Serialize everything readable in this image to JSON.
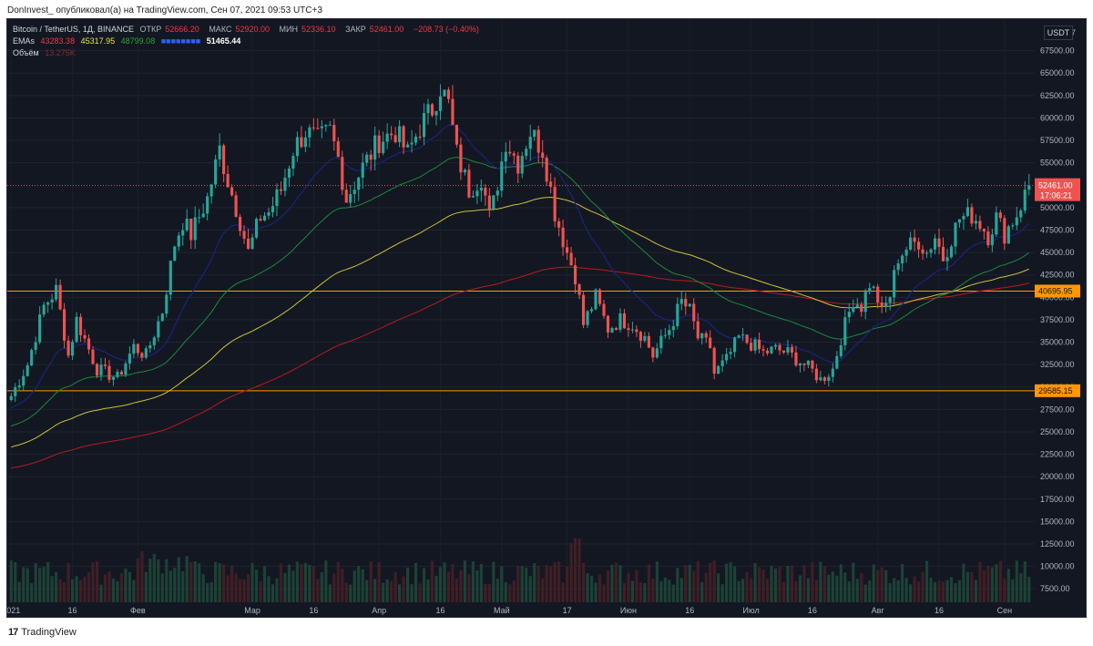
{
  "header": {
    "caption": "DonInvest_ опубликовал(а) на TradingView.com, Сен 07, 2021 09:53 UTC+3"
  },
  "legend": {
    "symbol": "Bitcoin / TetherUS, 1Д, BINANCE",
    "open_label": "ОТКР",
    "open": "52666.20",
    "high_label": "МАКС",
    "high": "52920.00",
    "low_label": "МИН",
    "low": "52336.10",
    "close_label": "ЗАКР",
    "close": "52461.00",
    "change": "−208.73 (−0.40%)",
    "ema_label": "EMAs",
    "ema_values": [
      "43283.38",
      "45317.95",
      "48799.08",
      "51465.44"
    ],
    "volume_label": "Объём",
    "volume_value": "13.275K"
  },
  "currency": "USDT",
  "colors": {
    "background": "#131722",
    "up": "#26a69a",
    "down": "#ef5350",
    "ema200": "#b71c1c",
    "ema100": "#c9c23a",
    "ema50": "#1b8a3a",
    "ema20": "#1a237e",
    "level": "#ff9800",
    "last_price": "#ef5350"
  },
  "chart_data": {
    "type": "candlestick",
    "title": "Bitcoin / TetherUS, 1Д, BINANCE",
    "y_ticks": [
      7500,
      10000,
      12500,
      15000,
      17500,
      20000,
      22500,
      25000,
      27500,
      30000,
      32500,
      35000,
      37500,
      40000,
      42500,
      45000,
      47500,
      50000,
      55000,
      57500,
      60000,
      62500,
      65000,
      67500
    ],
    "y_top_partial_label": "7",
    "ylim": [
      6000,
      70000
    ],
    "x_ticks": [
      "2021",
      "16",
      "Фев",
      "Мар",
      "16",
      "Апр",
      "16",
      "Май",
      "17",
      "Июн",
      "16",
      "Июл",
      "16",
      "Авг",
      "16",
      "Сен"
    ],
    "x_tick_days": [
      0,
      15,
      31,
      59,
      74,
      90,
      105,
      120,
      136,
      151,
      166,
      181,
      196,
      212,
      227,
      243
    ],
    "total_days": 250,
    "horizontal_levels": [
      {
        "value": 40695.95,
        "label": "40695.95"
      },
      {
        "value": 29585.15,
        "label": "29585.15"
      }
    ],
    "last_price": {
      "value": 52461.0,
      "label": "52461.00",
      "countdown": "17:06:21"
    },
    "anchors": [
      [
        0,
        29000
      ],
      [
        4,
        32500
      ],
      [
        8,
        39000
      ],
      [
        11,
        40800
      ],
      [
        14,
        33500
      ],
      [
        16,
        37500
      ],
      [
        21,
        32000
      ],
      [
        26,
        31000
      ],
      [
        30,
        34500
      ],
      [
        33,
        33500
      ],
      [
        37,
        38500
      ],
      [
        40,
        46000
      ],
      [
        42,
        48500
      ],
      [
        44,
        47000
      ],
      [
        48,
        51000
      ],
      [
        51,
        56500
      ],
      [
        53,
        53000
      ],
      [
        56,
        48500
      ],
      [
        58,
        45000
      ],
      [
        61,
        49000
      ],
      [
        63,
        49500
      ],
      [
        66,
        52000
      ],
      [
        69,
        56500
      ],
      [
        72,
        58500
      ],
      [
        75,
        57500
      ],
      [
        78,
        58500
      ],
      [
        80,
        55500
      ],
      [
        82,
        51000
      ],
      [
        86,
        54500
      ],
      [
        90,
        57500
      ],
      [
        94,
        58500
      ],
      [
        97,
        56000
      ],
      [
        100,
        59000
      ],
      [
        103,
        61000
      ],
      [
        105,
        63500
      ],
      [
        107,
        61500
      ],
      [
        109,
        56000
      ],
      [
        112,
        52000
      ],
      [
        115,
        53500
      ],
      [
        117,
        49000
      ],
      [
        118,
        50500
      ],
      [
        121,
        57500
      ],
      [
        124,
        55000
      ],
      [
        127,
        58500
      ],
      [
        130,
        56500
      ],
      [
        132,
        52000
      ],
      [
        133,
        49500
      ],
      [
        136,
        45000
      ],
      [
        138,
        42500
      ],
      [
        140,
        37000
      ],
      [
        143,
        40000
      ],
      [
        146,
        36500
      ],
      [
        149,
        37500
      ],
      [
        152,
        37000
      ],
      [
        155,
        35500
      ],
      [
        157,
        33500
      ],
      [
        161,
        36500
      ],
      [
        164,
        39500
      ],
      [
        166,
        38500
      ],
      [
        168,
        35500
      ],
      [
        171,
        34500
      ],
      [
        172,
        31500
      ],
      [
        175,
        33000
      ],
      [
        178,
        35500
      ],
      [
        181,
        34800
      ],
      [
        184,
        33800
      ],
      [
        187,
        34200
      ],
      [
        190,
        33800
      ],
      [
        194,
        32500
      ],
      [
        196,
        31800
      ],
      [
        198,
        30800
      ],
      [
        201,
        32000
      ],
      [
        203,
        35500
      ],
      [
        206,
        39800
      ],
      [
        208,
        39000
      ],
      [
        210,
        41600
      ],
      [
        212,
        39800
      ],
      [
        213,
        38200
      ],
      [
        215,
        40200
      ],
      [
        217,
        44500
      ],
      [
        219,
        45500
      ],
      [
        222,
        46300
      ],
      [
        224,
        45000
      ],
      [
        226,
        46800
      ],
      [
        228,
        44400
      ],
      [
        230,
        46700
      ],
      [
        232,
        48800
      ],
      [
        235,
        49200
      ],
      [
        237,
        48300
      ],
      [
        239,
        46900
      ],
      [
        241,
        48900
      ],
      [
        243,
        47100
      ],
      [
        246,
        49300
      ],
      [
        249,
        52461
      ]
    ],
    "ema_series": [
      {
        "name": "EMA 20",
        "value": 51465.44
      },
      {
        "name": "EMA 50",
        "value": 48799.08
      },
      {
        "name": "EMA 100",
        "value": 45317.95
      },
      {
        "name": "EMA 200",
        "value": 43283.38
      }
    ],
    "volume_unit": "K"
  },
  "footer": {
    "logo_mark": "17",
    "logo_text": "TradingView"
  }
}
